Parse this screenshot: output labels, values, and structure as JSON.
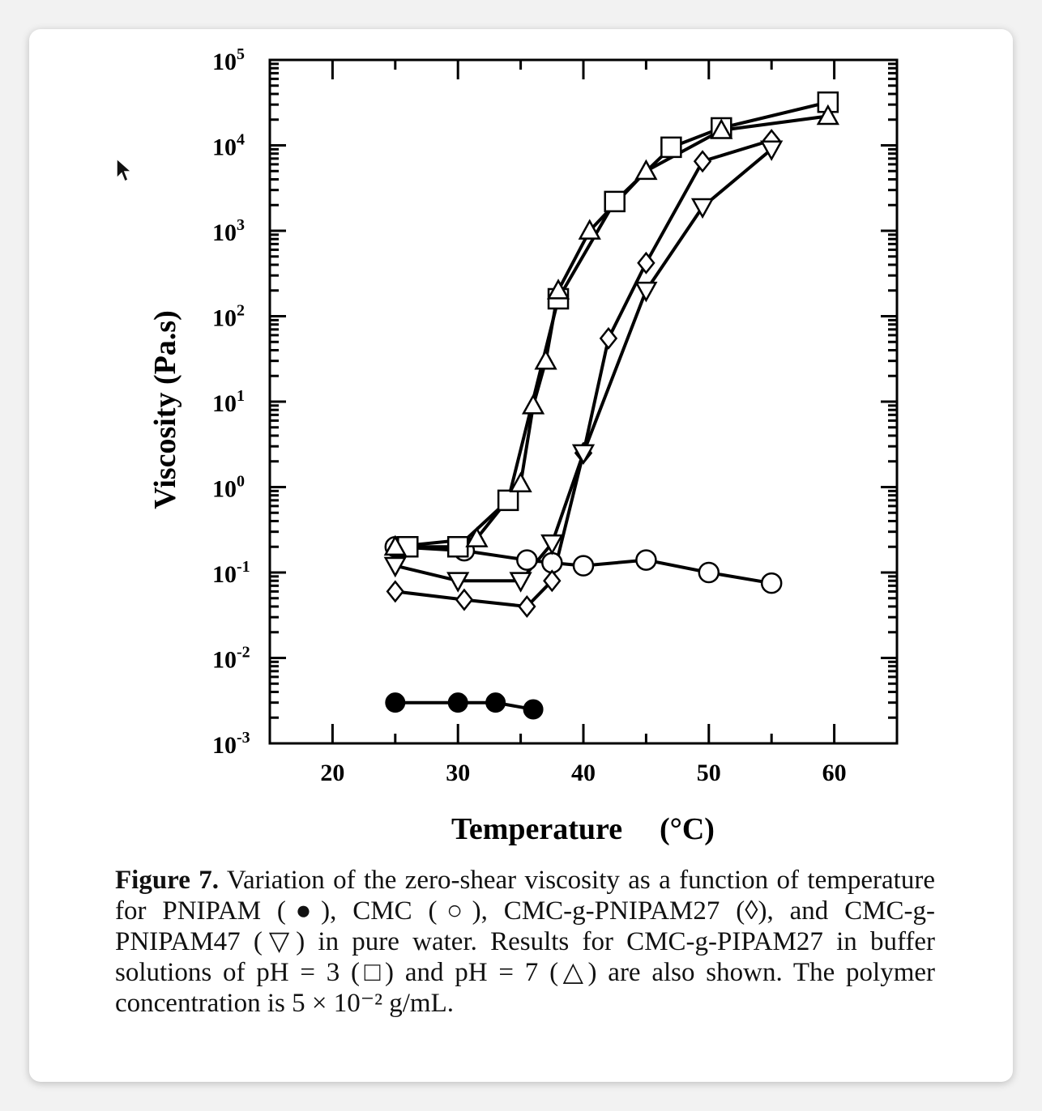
{
  "chart_data": {
    "type": "line",
    "xlabel_text": "Temperature",
    "xlabel_unit": "(°C)",
    "ylabel": "Viscosity  (Pa.s)",
    "xlim": [
      15,
      65
    ],
    "ylim": [
      0.001,
      100000
    ],
    "y_scale": "log",
    "x_ticks": [
      20,
      30,
      40,
      50,
      60
    ],
    "y_ticks": [
      {
        "base": "10",
        "exp": "5",
        "value": 100000
      },
      {
        "base": "10",
        "exp": "4",
        "value": 10000
      },
      {
        "base": "10",
        "exp": "3",
        "value": 1000
      },
      {
        "base": "10",
        "exp": "2",
        "value": 100
      },
      {
        "base": "10",
        "exp": "1",
        "value": 10
      },
      {
        "base": "10",
        "exp": "0",
        "value": 1
      },
      {
        "base": "10",
        "exp": "-1",
        "value": 0.1
      },
      {
        "base": "10",
        "exp": "-2",
        "value": 0.01
      },
      {
        "base": "10",
        "exp": "-3",
        "value": 0.001
      }
    ],
    "series": [
      {
        "marker": "filled-circle",
        "x": [
          25,
          30,
          33,
          36
        ],
        "y": [
          0.003,
          0.003,
          0.003,
          0.0025
        ]
      },
      {
        "marker": "open-circle",
        "x": [
          25,
          30.5,
          35.5,
          37.5,
          40,
          45,
          50,
          55
        ],
        "y": [
          0.2,
          0.18,
          0.14,
          0.13,
          0.12,
          0.14,
          0.1,
          0.075
        ]
      },
      {
        "marker": "diamond",
        "x": [
          25,
          30.5,
          35.5,
          37.5,
          40,
          42,
          45,
          49.5,
          55
        ],
        "y": [
          0.06,
          0.048,
          0.04,
          0.08,
          2.5,
          55,
          420,
          6500,
          11500
        ]
      },
      {
        "marker": "down-triangle",
        "x": [
          25,
          30,
          35,
          37.5,
          40,
          45,
          49.5,
          55
        ],
        "y": [
          0.12,
          0.08,
          0.08,
          0.22,
          2.5,
          200,
          1900,
          9000
        ]
      },
      {
        "marker": "square",
        "x": [
          26,
          30,
          34,
          38,
          42.5,
          47,
          51,
          59.5
        ],
        "y": [
          0.2,
          0.2,
          0.7,
          160,
          2200,
          9500,
          16000,
          32000
        ]
      },
      {
        "marker": "up-triangle",
        "x": [
          25,
          31.5,
          35,
          36,
          37,
          38,
          40.5,
          45,
          51,
          59.5
        ],
        "y": [
          0.2,
          0.25,
          1.1,
          9,
          30,
          200,
          1000,
          5000,
          15000,
          22000
        ]
      }
    ]
  },
  "caption": {
    "label": "Figure 7.",
    "text": "Variation of the zero-shear viscosity as a function of temperature for PNIPAM (●), CMC (○), CMC-g-PNIPAM27 (◊), and CMC-g-PNIPAM47 (▽) in pure water. Results for CMC-g-PIPAM27 in buffer solutions of pH = 3 (□) and pH = 7 (△) are also shown. The polymer concentration is 5 × 10⁻² g/mL."
  }
}
